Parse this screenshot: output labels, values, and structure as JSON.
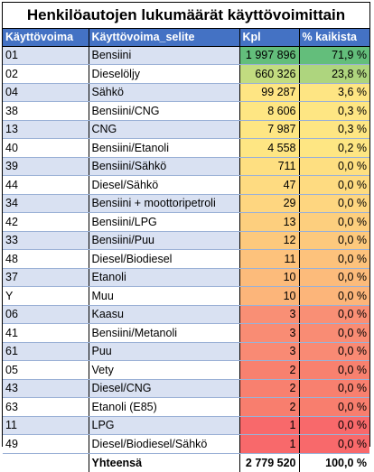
{
  "title": "Henkilöautojen lukumäärät käyttövoimittain",
  "headers": [
    "Käyttövoima",
    "Käyttövoima_selite",
    "Kpl",
    "% kaikista"
  ],
  "rows": [
    {
      "code": "01",
      "desc": "Bensiini",
      "kpl": "1 997 896",
      "pct": "71,9 %",
      "kpl_color": "#63be7b",
      "pct_color": "#63be7b"
    },
    {
      "code": "02",
      "desc": "Dieselöljy",
      "kpl": "660 326",
      "pct": "23,8 %",
      "kpl_color": "#c2dc80",
      "pct_color": "#aed57e"
    },
    {
      "code": "04",
      "desc": "Sähkö",
      "kpl": "99 287",
      "pct": "3,6 %",
      "kpl_color": "#fee583",
      "pct_color": "#fee583"
    },
    {
      "code": "38",
      "desc": "Bensiini/CNG",
      "kpl": "8 606",
      "pct": "0,3 %",
      "kpl_color": "#fee683",
      "pct_color": "#fee683"
    },
    {
      "code": "13",
      "desc": "CNG",
      "kpl": "7 987",
      "pct": "0,3 %",
      "kpl_color": "#fee683",
      "pct_color": "#fee683"
    },
    {
      "code": "40",
      "desc": "Bensiini/Etanoli",
      "kpl": "4 558",
      "pct": "0,2 %",
      "kpl_color": "#fee683",
      "pct_color": "#fee683"
    },
    {
      "code": "39",
      "desc": "Bensiini/Sähkö",
      "kpl": "711",
      "pct": "0,0 %",
      "kpl_color": "#fedf81",
      "pct_color": "#fedf81"
    },
    {
      "code": "44",
      "desc": "Diesel/Sähkö",
      "kpl": "47",
      "pct": "0,0 %",
      "kpl_color": "#fedb81",
      "pct_color": "#fedb81"
    },
    {
      "code": "34",
      "desc": "Bensiini + moottoripetroli",
      "kpl": "29",
      "pct": "0,0 %",
      "kpl_color": "#fed680",
      "pct_color": "#fed680"
    },
    {
      "code": "42",
      "desc": "Bensiini/LPG",
      "kpl": "13",
      "pct": "0,0 %",
      "kpl_color": "#fdcf7e",
      "pct_color": "#fdcf7e"
    },
    {
      "code": "33",
      "desc": "Bensiini/Puu",
      "kpl": "12",
      "pct": "0,0 %",
      "kpl_color": "#fdc97d",
      "pct_color": "#fdc97d"
    },
    {
      "code": "48",
      "desc": "Diesel/Biodiesel",
      "kpl": "11",
      "pct": "0,0 %",
      "kpl_color": "#fdc27c",
      "pct_color": "#fdc27c"
    },
    {
      "code": "37",
      "desc": "Etanoli",
      "kpl": "10",
      "pct": "0,0 %",
      "kpl_color": "#fcbb7b",
      "pct_color": "#fcbb7b"
    },
    {
      "code": "Y",
      "desc": "Muu",
      "kpl": "10",
      "pct": "0,0 %",
      "kpl_color": "#fcb57a",
      "pct_color": "#fcb57a"
    },
    {
      "code": "06",
      "desc": "Kaasu",
      "kpl": "3",
      "pct": "0,0 %",
      "kpl_color": "#f98f75",
      "pct_color": "#f98f75"
    },
    {
      "code": "41",
      "desc": "Bensiini/Metanoli",
      "kpl": "3",
      "pct": "0,0 %",
      "kpl_color": "#f98c74",
      "pct_color": "#f98c74"
    },
    {
      "code": "61",
      "desc": "Puu",
      "kpl": "3",
      "pct": "0,0 %",
      "kpl_color": "#f98a74",
      "pct_color": "#f98a74"
    },
    {
      "code": "05",
      "desc": "Vety",
      "kpl": "2",
      "pct": "0,0 %",
      "kpl_color": "#f8816f",
      "pct_color": "#f8816f"
    },
    {
      "code": "43",
      "desc": "Diesel/CNG",
      "kpl": "2",
      "pct": "0,0 %",
      "kpl_color": "#f8806f",
      "pct_color": "#f8806f"
    },
    {
      "code": "63",
      "desc": "Etanoli (E85)",
      "kpl": "2",
      "pct": "0,0 %",
      "kpl_color": "#f87e6e",
      "pct_color": "#f87e6e"
    },
    {
      "code": "11",
      "desc": "LPG",
      "kpl": "1",
      "pct": "0,0 %",
      "kpl_color": "#f8696b",
      "pct_color": "#f8696b"
    },
    {
      "code": "49",
      "desc": "Diesel/Biodiesel/Sähkö",
      "kpl": "1",
      "pct": "0,0 %",
      "kpl_color": "#f8696b",
      "pct_color": "#f8696b"
    }
  ],
  "total": {
    "label": "Yhteensä",
    "kpl": "2 779 520",
    "pct": "100,0 %"
  }
}
